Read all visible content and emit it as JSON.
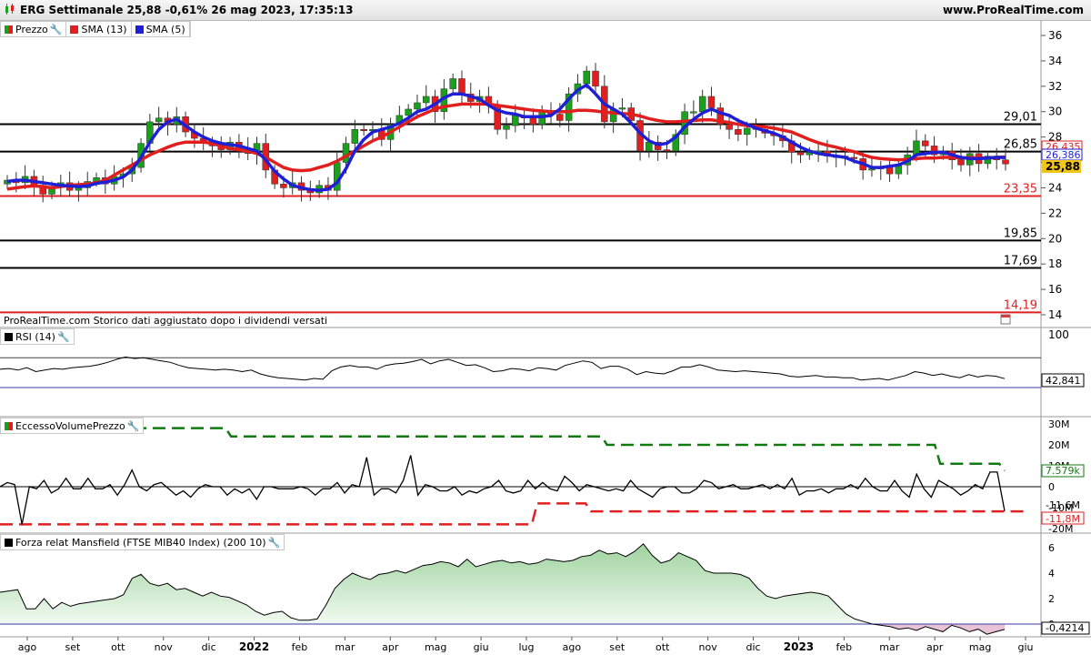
{
  "header": {
    "title": "ERG Settimanale 25,88 -0,61% 26 mag 2023, 17:35:13",
    "site": "www.ProRealTime.com"
  },
  "legend_price": [
    {
      "label": "Prezzo",
      "color": "#1aa01a"
    },
    {
      "label": "SMA (13)",
      "color": "#e21f1f"
    },
    {
      "label": "SMA (5)",
      "color": "#1f1fd6"
    }
  ],
  "note": "ProRealTime.com Storico dati aggiustato dopo i dividendi versati",
  "panels": {
    "rsi": {
      "label": "RSI (14)",
      "current": "42,841",
      "axis_label": "100"
    },
    "volume": {
      "label": "EccessoVolumePrezzo",
      "upper_tag": "7.579k",
      "lower_tag": "-11,8M",
      "mid_tag": "-11,6M"
    },
    "mansfield": {
      "label": "Forza relat Mansfield (FTSE MIB40 Index) (200 10)",
      "current": "-0,4214"
    }
  },
  "chart_data": [
    {
      "type": "candlestick",
      "title": "ERG Settimanale",
      "last_price": "25,88",
      "change": "-0,61%",
      "y_range": [
        13.6,
        37
      ],
      "y_ticks": [
        "14",
        "16",
        "18",
        "20",
        "22",
        "24",
        "26",
        "28",
        "30",
        "32",
        "34",
        "36"
      ],
      "levels": [
        {
          "value": 29.01,
          "label": "29,01",
          "color": "#000000"
        },
        {
          "value": 26.85,
          "label": "26,85",
          "color": "#000000"
        },
        {
          "value": 23.35,
          "label": "23,35",
          "color": "#e21f1f"
        },
        {
          "value": 19.85,
          "label": "19,85",
          "color": "#000000"
        },
        {
          "value": 17.69,
          "label": "17,69",
          "color": "#000000"
        },
        {
          "value": 14.19,
          "label": "14,19",
          "color": "#e21f1f"
        }
      ],
      "price_tags": [
        {
          "label": "26,435",
          "color": "#e21f1f"
        },
        {
          "label": "26,386",
          "color": "#1f1fd6"
        },
        {
          "label": "25,88",
          "color": "#000000"
        }
      ],
      "close": [
        24.6,
        24.4,
        24.9,
        24.2,
        23.5,
        24.1,
        24.4,
        23.8,
        24.0,
        24.5,
        24.8,
        24.3,
        24.9,
        25.1,
        25.6,
        27.5,
        29.2,
        29.5,
        29.0,
        29.6,
        28.4,
        27.9,
        27.5,
        27.3,
        27.0,
        27.6,
        27.1,
        26.7,
        27.5,
        25.4,
        24.3,
        24.0,
        24.4,
        23.8,
        23.6,
        24.2,
        23.8,
        26.0,
        27.5,
        28.6,
        28.5,
        28.6,
        27.8,
        29.0,
        29.7,
        30.2,
        30.7,
        31.2,
        30.0,
        31.8,
        32.6,
        31.4,
        30.8,
        31.2,
        30.5,
        28.6,
        28.9,
        29.7,
        29.5,
        29.0,
        30.1,
        29.8,
        29.3,
        31.4,
        32.2,
        33.2,
        32.0,
        29.2,
        30.2,
        30.3,
        29.3,
        26.9,
        27.6,
        27.0,
        26.9,
        28.2,
        30.0,
        30.0,
        31.2,
        30.3,
        29.0,
        28.6,
        28.2,
        28.7,
        28.6,
        28.3,
        28.1,
        27.7,
        26.8,
        26.6,
        26.8,
        26.9,
        26.5,
        26.5,
        26.4,
        26.3,
        25.4,
        25.5,
        25.6,
        25.1,
        25.8,
        26.6,
        27.7,
        27.3,
        26.6,
        26.9,
        26.2,
        25.8,
        26.7,
        25.9,
        26.5,
        26.2,
        25.88
      ],
      "sma13": [
        23.9,
        24.0,
        24.1,
        24.15,
        24.1,
        24.0,
        24.1,
        24.2,
        24.25,
        24.3,
        24.4,
        24.6,
        25.0,
        25.4,
        25.8,
        26.2,
        26.6,
        26.9,
        27.2,
        27.45,
        27.6,
        27.6,
        27.6,
        27.5,
        27.3,
        27.1,
        27.0,
        26.9,
        26.7,
        26.4,
        26.0,
        25.6,
        25.4,
        25.35,
        25.4,
        25.6,
        25.8,
        26.1,
        26.5,
        26.9,
        27.3,
        27.7,
        28.0,
        28.4,
        28.8,
        29.2,
        29.6,
        29.9,
        30.2,
        30.4,
        30.5,
        30.6,
        30.6,
        30.6,
        30.6,
        30.5,
        30.4,
        30.3,
        30.2,
        30.1,
        30.05,
        30.0,
        30.0,
        30.0,
        30.1,
        30.1,
        30.05,
        29.95,
        29.9,
        29.85,
        29.8,
        29.65,
        29.45,
        29.3,
        29.2,
        29.2,
        29.25,
        29.3,
        29.35,
        29.35,
        29.25,
        29.15,
        29.0,
        28.9,
        28.85,
        28.8,
        28.7,
        28.55,
        28.4,
        28.1,
        27.8,
        27.55,
        27.35,
        27.2,
        27.0,
        26.85,
        26.6,
        26.4,
        26.3,
        26.25,
        26.2,
        26.25,
        26.3,
        26.35,
        26.35,
        26.4,
        26.4,
        26.35,
        26.4,
        26.35,
        26.35,
        26.4,
        26.43
      ],
      "sma5": [
        24.5,
        24.6,
        24.6,
        24.5,
        24.4,
        24.3,
        24.2,
        24.15,
        24.1,
        24.15,
        24.35,
        24.45,
        24.6,
        24.85,
        25.4,
        26.4,
        27.6,
        28.6,
        29.2,
        29.4,
        28.9,
        28.4,
        28.0,
        27.7,
        27.5,
        27.4,
        27.3,
        27.1,
        26.9,
        26.2,
        25.3,
        24.7,
        24.2,
        24.0,
        23.85,
        23.8,
        23.9,
        24.4,
        25.5,
        26.9,
        27.8,
        28.4,
        28.6,
        28.8,
        29.1,
        29.5,
        30.0,
        30.2,
        30.6,
        31.1,
        31.4,
        31.4,
        31.2,
        31.0,
        30.5,
        30.1,
        29.9,
        29.8,
        29.6,
        29.6,
        29.6,
        29.7,
        30.2,
        31.0,
        31.7,
        32.1,
        31.4,
        30.6,
        30.2,
        29.8,
        29.1,
        28.3,
        27.7,
        27.4,
        27.5,
        28.0,
        28.8,
        29.4,
        29.9,
        30.2,
        29.9,
        29.7,
        29.3,
        29.0,
        28.7,
        28.5,
        28.3,
        28.0,
        27.6,
        27.2,
        26.9,
        26.7,
        26.6,
        26.5,
        26.4,
        26.1,
        25.9,
        25.6,
        25.6,
        25.7,
        25.8,
        26.1,
        26.6,
        26.7,
        26.8,
        26.8,
        26.6,
        26.4,
        26.3,
        26.3,
        26.35,
        26.4,
        26.39
      ]
    },
    {
      "type": "line",
      "title": "RSI (14)",
      "y_range": [
        30,
        100
      ],
      "values": [
        55,
        56,
        54,
        57,
        52,
        54,
        56,
        55,
        57,
        58,
        59,
        61,
        64,
        68,
        71,
        69,
        70,
        68,
        66,
        64,
        60,
        57,
        56,
        55,
        54,
        55,
        54,
        52,
        54,
        49,
        46,
        44,
        43,
        42,
        41,
        43,
        42,
        53,
        58,
        60,
        58,
        58,
        55,
        60,
        62,
        63,
        65,
        68,
        62,
        66,
        68,
        64,
        60,
        61,
        57,
        52,
        53,
        56,
        55,
        53,
        57,
        56,
        54,
        60,
        63,
        66,
        64,
        56,
        59,
        59,
        55,
        48,
        52,
        50,
        49,
        53,
        58,
        58,
        61,
        58,
        54,
        53,
        52,
        53,
        52,
        51,
        50,
        49,
        46,
        45,
        46,
        47,
        45,
        45,
        44,
        44,
        41,
        42,
        43,
        41,
        44,
        47,
        52,
        50,
        47,
        49,
        46,
        44,
        48,
        45,
        47,
        46,
        42.841
      ]
    },
    {
      "type": "line",
      "title": "EccessoVolumePrezzo",
      "y_ticks": [
        "30M",
        "20M",
        "10M",
        "0",
        "-10M",
        "-20M"
      ],
      "y_range": [
        -23,
        32
      ],
      "values": [
        0,
        2,
        1,
        -18,
        0,
        -1,
        3,
        -3,
        -1,
        4,
        -1,
        -1,
        4,
        -1,
        -1,
        1,
        -4,
        1,
        8,
        0,
        -2,
        1,
        2,
        -1,
        -4,
        -2,
        -5,
        -1,
        1,
        0,
        0,
        -4,
        -1,
        -3,
        -1,
        -6,
        0,
        0,
        -1,
        -1,
        -1,
        0,
        -1,
        -4,
        -1,
        -1,
        2,
        -3,
        1,
        0,
        14,
        -4,
        -1,
        -1,
        -3,
        3,
        15,
        -4,
        1,
        0,
        -2,
        -2,
        0,
        -4,
        -2,
        -3,
        -1,
        0,
        3,
        -2,
        -3,
        -2,
        3,
        -1,
        2,
        -1,
        -2,
        5,
        2,
        -2,
        1,
        0,
        -1,
        -2,
        -1,
        -2,
        3,
        -1,
        -3,
        -5,
        -1,
        0,
        0,
        -3,
        -3,
        -1,
        3,
        2,
        -1,
        0,
        1,
        -1,
        -1,
        0,
        1,
        -1,
        1,
        -1,
        4,
        -4,
        -2,
        -2,
        -1,
        -3,
        -1,
        -1,
        1,
        -1,
        4,
        0,
        -2,
        -2,
        3,
        -2,
        -5,
        6,
        -1,
        -5,
        3,
        1,
        -1,
        -4,
        -2,
        1,
        -1,
        7,
        7,
        -11.6
      ],
      "upper_band": [
        28,
        28,
        28,
        28,
        28,
        28,
        28,
        28,
        28,
        28,
        28,
        28,
        28,
        28,
        28,
        28,
        28,
        28,
        28,
        28,
        28,
        28,
        28,
        28,
        28,
        28,
        28,
        28,
        28,
        28,
        28,
        28,
        28,
        28,
        28,
        28,
        28,
        28,
        28,
        28,
        28,
        28,
        28,
        24,
        24,
        24,
        24,
        24,
        24,
        24,
        24,
        24,
        24,
        24,
        24,
        24,
        24,
        24,
        24,
        24,
        24,
        24,
        24,
        24,
        24,
        24,
        24,
        24,
        24,
        24,
        24,
        24,
        24,
        24,
        24,
        24,
        24,
        24,
        24,
        24,
        24,
        24,
        24,
        24,
        24,
        24,
        24,
        24,
        24,
        24,
        24,
        24,
        24,
        24,
        24,
        24,
        24,
        24,
        24,
        24,
        24,
        24,
        24,
        24,
        24,
        24,
        24,
        24,
        24,
        24,
        24,
        24,
        24,
        20,
        20,
        20,
        20,
        20,
        20,
        20,
        20,
        20,
        20,
        20,
        20,
        20,
        20,
        20,
        20,
        20,
        20,
        20,
        20,
        20,
        20,
        20,
        20,
        20,
        20,
        20,
        20,
        20,
        20,
        20,
        20,
        20,
        20,
        20,
        20,
        20,
        20,
        20,
        20,
        20,
        20,
        20,
        20,
        20,
        20,
        20,
        20,
        20,
        20,
        20,
        20,
        20,
        20,
        20,
        20,
        20,
        20,
        20,
        20,
        20,
        20,
        11,
        11,
        11,
        11,
        11,
        11,
        11,
        11,
        11,
        11,
        11,
        11,
        7.6
      ],
      "lower_band": [
        -18,
        -18,
        -18,
        -18,
        -18,
        -18,
        -18,
        -18,
        -18,
        -18,
        -18,
        -18,
        -18,
        -18,
        -18,
        -18,
        -18,
        -18,
        -18,
        -18,
        -18,
        -18,
        -18,
        -18,
        -18,
        -18,
        -18,
        -18,
        -18,
        -18,
        -18,
        -18,
        -18,
        -18,
        -18,
        -18,
        -18,
        -18,
        -18,
        -18,
        -18,
        -18,
        -18,
        -18,
        -18,
        -18,
        -18,
        -18,
        -18,
        -18,
        -18,
        -18,
        -18,
        -18,
        -18,
        -18,
        -18,
        -18,
        -18,
        -18,
        -18,
        -18,
        -18,
        -18,
        -18,
        -18,
        -18,
        -18,
        -18,
        -18,
        -18,
        -18,
        -18,
        -18,
        -18,
        -18,
        -18,
        -18,
        -18,
        -18,
        -18,
        -18,
        -18,
        -18,
        -18,
        -18,
        -18,
        -18,
        -18,
        -18,
        -18,
        -18,
        -18,
        -18,
        -18,
        -18,
        -18,
        -18,
        -18,
        -18,
        -8,
        -8,
        -8,
        -8,
        -8,
        -8,
        -8,
        -8,
        -8,
        -8,
        -11.8,
        -11.8,
        -11.8,
        -11.8,
        -11.8,
        -11.8,
        -11.8,
        -11.8,
        -11.8,
        -11.8,
        -11.8,
        -11.8,
        -11.8,
        -11.8,
        -11.8,
        -11.8,
        -11.8,
        -11.8,
        -11.8,
        -11.8,
        -11.8,
        -11.8,
        -11.8,
        -11.8,
        -11.8,
        -11.8,
        -11.8,
        -11.8,
        -11.8,
        -11.8,
        -11.8,
        -11.8,
        -11.8,
        -11.8,
        -11.8,
        -11.8,
        -11.8,
        -11.8,
        -11.8,
        -11.8,
        -11.8,
        -11.8,
        -11.8,
        -11.8,
        -11.8,
        -11.8,
        -11.8,
        -11.8,
        -11.8,
        -11.8,
        -11.8,
        -11.8,
        -11.8,
        -11.8,
        -11.8,
        -11.8,
        -11.8,
        -11.8,
        -11.8,
        -11.8,
        -11.8,
        -11.8,
        -11.8,
        -11.8,
        -11.8,
        -11.8,
        -11.8,
        -11.8,
        -11.8,
        -11.8,
        -11.8,
        -11.8,
        -11.8,
        -11.8,
        -11.8,
        -11.8,
        -11.8,
        -11.8,
        -11.8,
        -11.8,
        -11.8,
        -11.8
      ]
    },
    {
      "type": "area",
      "title": "Forza relat Mansfield (FTSE MIB40 Index) (200 10)",
      "y_ticks": [
        "6",
        "4",
        "2",
        "0"
      ],
      "y_range": [
        -1.3,
        7
      ],
      "values": [
        2.5,
        2.6,
        2.7,
        1.2,
        1.2,
        2.0,
        1.2,
        1.7,
        1.4,
        1.6,
        1.7,
        1.8,
        1.9,
        2.0,
        2.3,
        3.6,
        3.9,
        3.2,
        3.0,
        3.2,
        2.7,
        2.8,
        2.5,
        2.2,
        2.5,
        2.2,
        2.1,
        1.8,
        1.5,
        1.0,
        0.7,
        0.9,
        1.0,
        0.5,
        0.3,
        0.3,
        0.4,
        1.5,
        2.8,
        3.5,
        4.0,
        3.7,
        3.5,
        3.9,
        4.0,
        4.2,
        4.0,
        4.3,
        4.6,
        4.7,
        4.9,
        4.8,
        4.5,
        5.1,
        4.5,
        4.7,
        4.9,
        5.0,
        4.8,
        4.9,
        4.7,
        4.8,
        5.1,
        5.0,
        4.9,
        5.0,
        5.3,
        5.4,
        5.8,
        5.5,
        5.6,
        5.3,
        5.7,
        6.3,
        5.4,
        4.8,
        5.0,
        5.6,
        5.3,
        5.0,
        4.2,
        4.0,
        4.0,
        4.0,
        3.9,
        3.6,
        2.8,
        2.2,
        2.0,
        2.2,
        2.3,
        2.4,
        2.5,
        2.4,
        2.2,
        1.5,
        0.8,
        0.4,
        0.2,
        0.0,
        -0.1,
        -0.2,
        -0.4,
        -0.3,
        -0.5,
        -0.2,
        -0.4,
        -0.6,
        -0.1,
        -0.3,
        -0.6,
        -0.4,
        -0.8,
        -0.6,
        -0.42
      ]
    }
  ],
  "x_axis": {
    "labels": [
      "ago",
      "set",
      "ott",
      "nov",
      "dic",
      "2022",
      "feb",
      "mar",
      "apr",
      "mag",
      "giu",
      "lug",
      "ago",
      "set",
      "ott",
      "nov",
      "dic",
      "2023",
      "feb",
      "mar",
      "apr",
      "mag",
      "giu"
    ]
  }
}
